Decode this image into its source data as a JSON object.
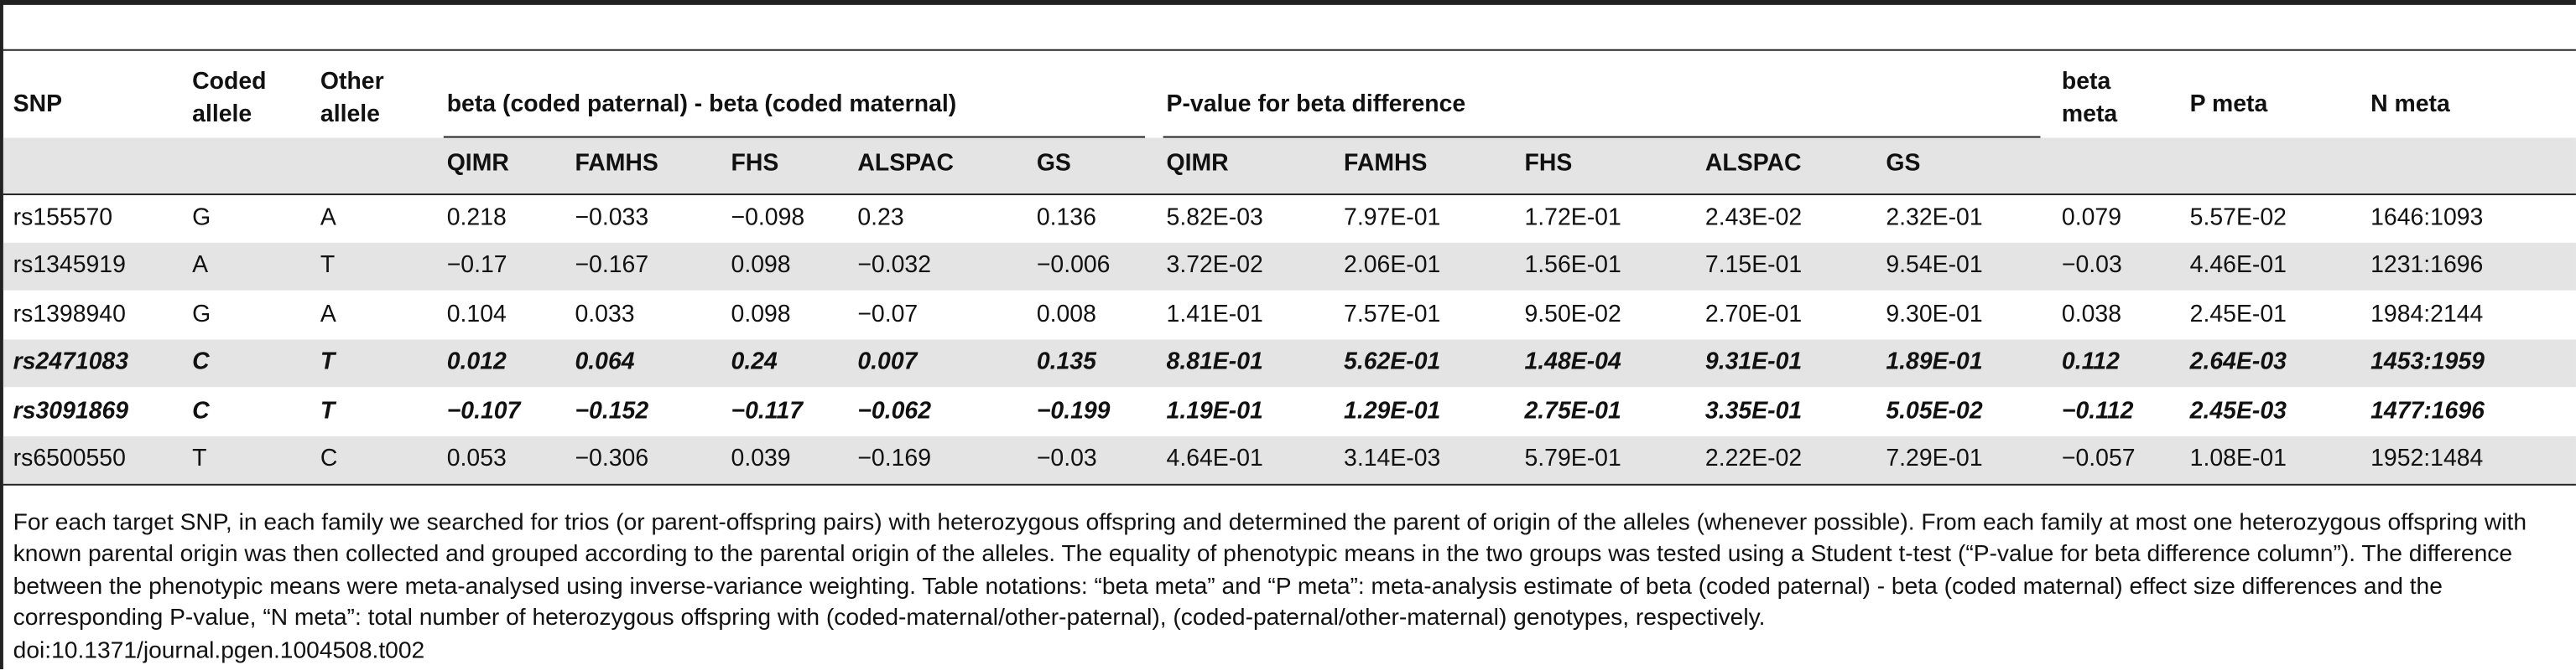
{
  "table": {
    "header": [
      "SNP",
      "Coded allele",
      "Other allele",
      "beta (coded paternal) - beta (coded maternal)",
      "P-value for beta difference",
      "beta meta",
      "P meta",
      "N meta"
    ],
    "subheader": [
      "QIMR",
      "FAMHS",
      "FHS",
      "ALSPAC",
      "GS",
      "QIMR",
      "FAMHS",
      "FHS",
      "ALSPAC",
      "GS"
    ],
    "rows": [
      {
        "style": "normal",
        "cells": [
          "rs155570",
          "G",
          "A",
          "0.218",
          "−0.033",
          "−0.098",
          "0.23",
          "0.136",
          "5.82E-03",
          "7.97E-01",
          "1.72E-01",
          "2.43E-02",
          "2.32E-01",
          "0.079",
          "5.57E-02",
          "1646:1093"
        ]
      },
      {
        "style": "normal",
        "cells": [
          "rs1345919",
          "A",
          "T",
          "−0.17",
          "−0.167",
          "0.098",
          "−0.032",
          "−0.006",
          "3.72E-02",
          "2.06E-01",
          "1.56E-01",
          "7.15E-01",
          "9.54E-01",
          "−0.03",
          "4.46E-01",
          "1231:1696"
        ]
      },
      {
        "style": "normal",
        "cells": [
          "rs1398940",
          "G",
          "A",
          "0.104",
          "0.033",
          "0.098",
          "−0.07",
          "0.008",
          "1.41E-01",
          "7.57E-01",
          "9.50E-02",
          "2.70E-01",
          "9.30E-01",
          "0.038",
          "2.45E-01",
          "1984:2144"
        ]
      },
      {
        "style": "bold-italic",
        "cells": [
          "rs2471083",
          "C",
          "T",
          "0.012",
          "0.064",
          "0.24",
          "0.007",
          "0.135",
          "8.81E-01",
          "5.62E-01",
          "1.48E-04",
          "9.31E-01",
          "1.89E-01",
          "0.112",
          "2.64E-03",
          "1453:1959"
        ]
      },
      {
        "style": "bold-italic",
        "cells": [
          "rs3091869",
          "C",
          "T",
          "−0.107",
          "−0.152",
          "−0.117",
          "−0.062",
          "−0.199",
          "1.19E-01",
          "1.29E-01",
          "2.75E-01",
          "3.35E-01",
          "5.05E-02",
          "−0.112",
          "2.45E-03",
          "1477:1696"
        ]
      },
      {
        "style": "normal",
        "cells": [
          "rs6500550",
          "T",
          "C",
          "0.053",
          "−0.306",
          "0.039",
          "−0.169",
          "−0.03",
          "4.64E-01",
          "3.14E-03",
          "5.79E-01",
          "2.22E-02",
          "7.29E-01",
          "−0.057",
          "1.08E-01",
          "1952:1484"
        ]
      }
    ]
  },
  "footnote": "For each target SNP, in each family we searched for trios (or parent-offspring pairs) with heterozygous offspring and determined the parent of origin of the alleles (whenever possible). From each family at most one heterozygous offspring with known parental origin was then collected and grouped according to the parental origin of the alleles. The equality of phenotypic means in the two groups was tested using a Student t-test (“P-value for beta difference column”). The difference between the phenotypic means were meta-analysed using inverse-variance weighting. Table notations: “beta meta” and “P meta”: meta-analysis estimate of beta (coded paternal) - beta (coded maternal) effect size differences and the corresponding P-value, “N meta”: total number of heterozygous offspring with (coded-maternal/other-paternal), (coded-paternal/other-maternal) genotypes, respectively.",
  "doi": "doi:10.1371/journal.pgen.1004508.t002"
}
